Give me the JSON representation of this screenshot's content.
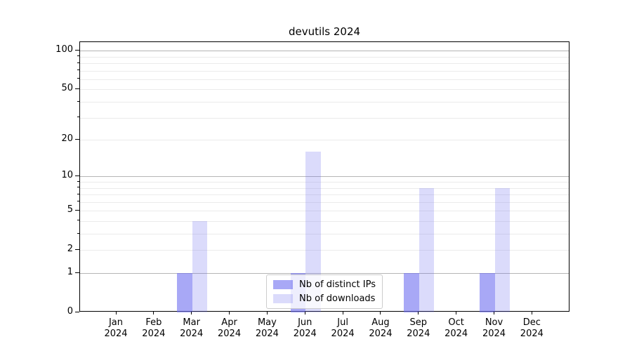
{
  "title": "devutils 2024",
  "colors": {
    "bar_distinct_ips": "rgba(110,110,240,0.6)",
    "bar_downloads": "rgba(110,110,240,0.25)",
    "grid_major": "#b5b5b5",
    "grid_minor": "#ebebeb",
    "axis": "#000000",
    "legend_border": "#cccccc",
    "legend_bg": "rgba(255,255,255,0.8)"
  },
  "legend": {
    "items": [
      {
        "label": "Nb of distinct IPs",
        "color_key": "bar_distinct_ips"
      },
      {
        "label": "Nb of downloads",
        "color_key": "bar_downloads"
      }
    ]
  },
  "chart_data": {
    "type": "bar",
    "title": "devutils 2024",
    "categories": [
      "Jan",
      "Feb",
      "Mar",
      "Apr",
      "May",
      "Jun",
      "Jul",
      "Aug",
      "Sep",
      "Oct",
      "Nov",
      "Dec"
    ],
    "category_year": "2024",
    "series": [
      {
        "name": "Nb of distinct IPs",
        "color_key": "bar_distinct_ips",
        "values": [
          0,
          0,
          1,
          0,
          0,
          1,
          0,
          0,
          1,
          0,
          1,
          0
        ]
      },
      {
        "name": "Nb of downloads",
        "color_key": "bar_downloads",
        "values": [
          0,
          0,
          4,
          0,
          0,
          16,
          0,
          0,
          8,
          0,
          8,
          0
        ]
      }
    ],
    "y_scale": "log1p",
    "ylim": [
      0,
      117
    ],
    "y_axis": {
      "tick_values": [
        0,
        1,
        2,
        5,
        10,
        20,
        50,
        100
      ],
      "tick_labels": [
        "0",
        "1",
        "2",
        "5",
        "10",
        "20",
        "50",
        "100"
      ],
      "major_grid_values": [
        1,
        10,
        100
      ],
      "minor_grid_values": [
        2,
        3,
        4,
        5,
        6,
        7,
        8,
        9,
        20,
        30,
        40,
        50,
        60,
        70,
        80,
        90
      ]
    },
    "grid": true,
    "legend_position": "lower center"
  }
}
